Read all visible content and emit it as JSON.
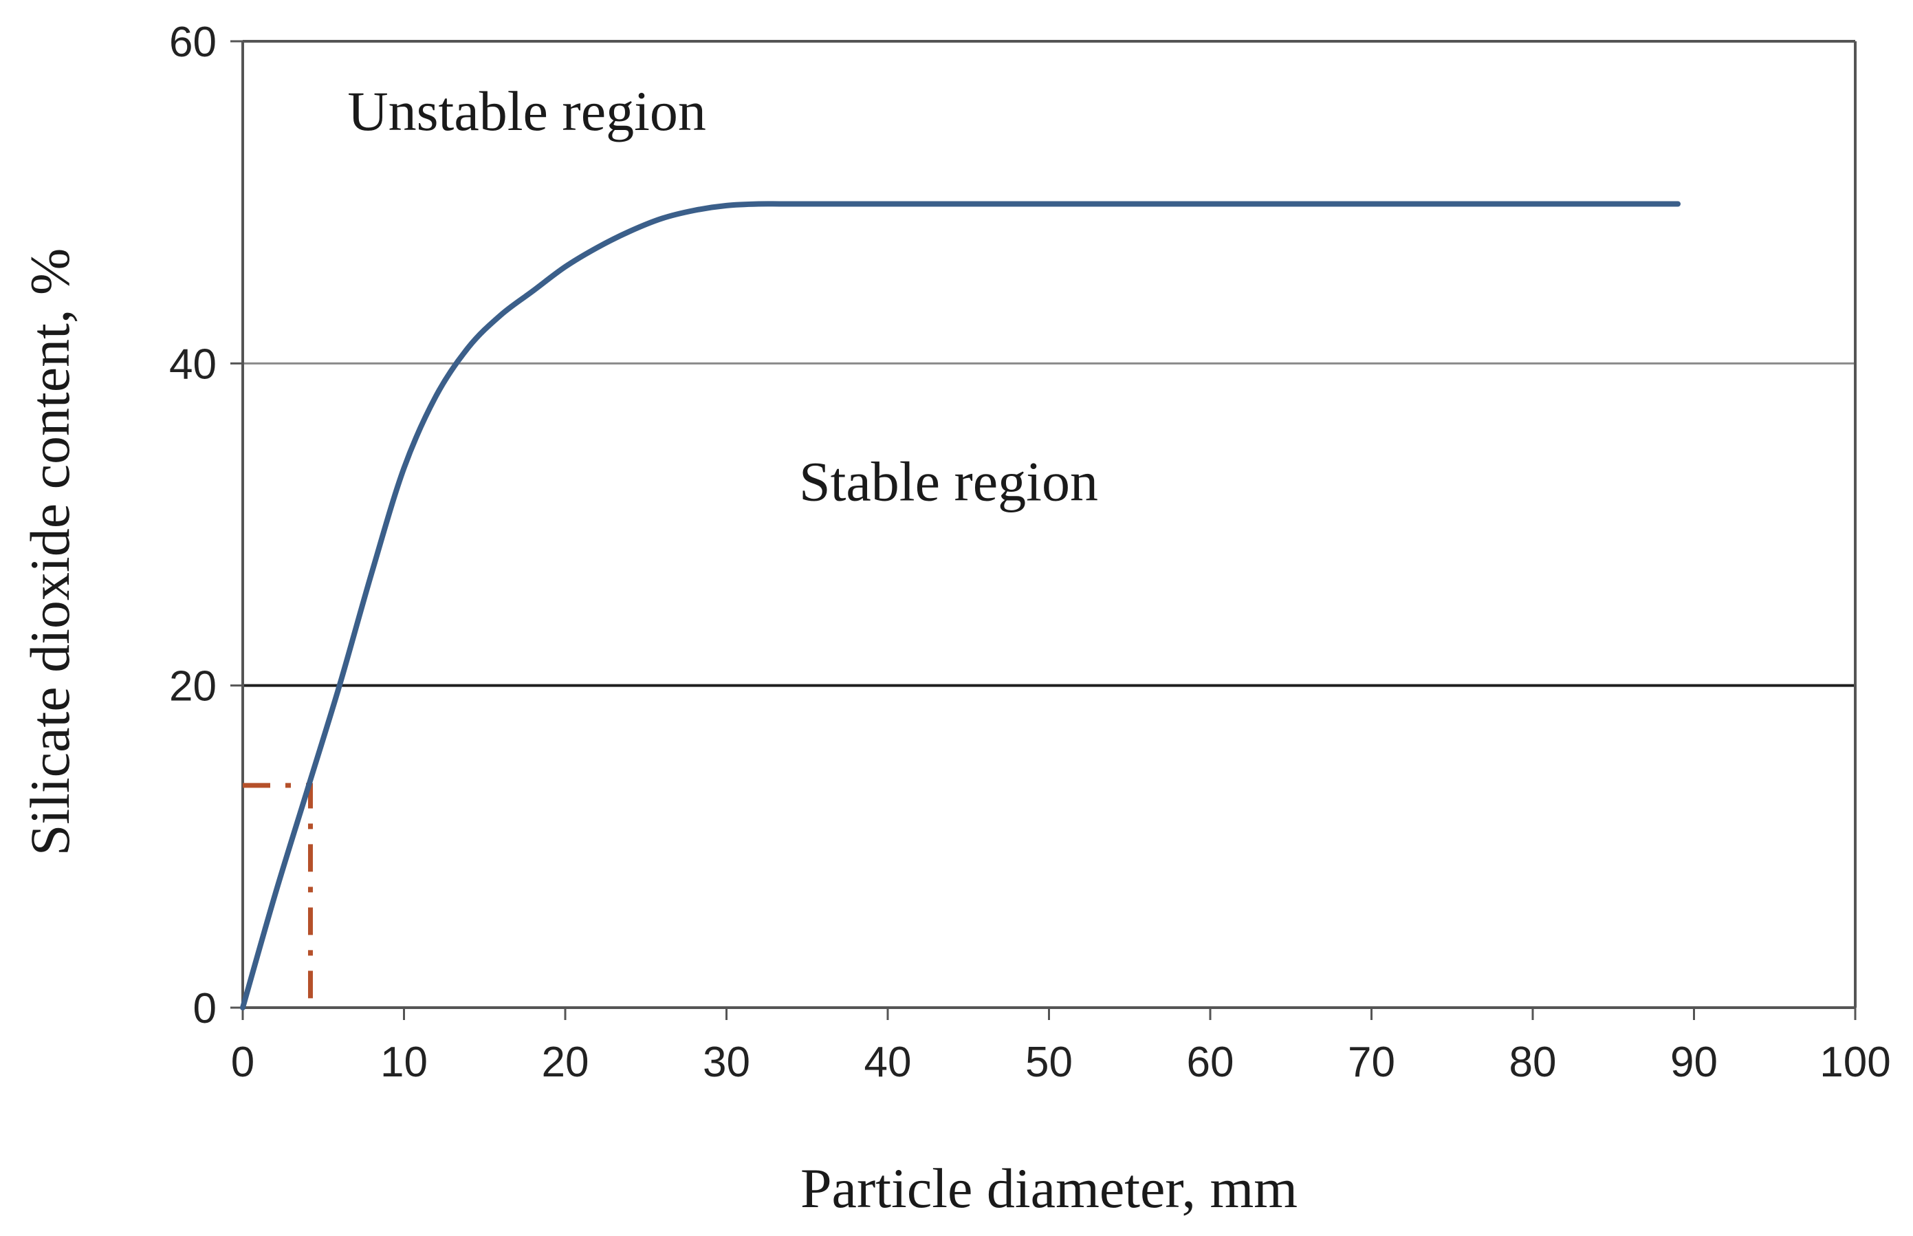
{
  "chart_data": {
    "type": "line",
    "title": "",
    "xlabel": "Particle diameter, mm",
    "ylabel": "Silicate dioxide content, %",
    "xlim": [
      0,
      100
    ],
    "ylim": [
      0,
      60
    ],
    "x_ticks": [
      "0",
      "10",
      "20",
      "30",
      "40",
      "50",
      "60",
      "70",
      "80",
      "90",
      "100"
    ],
    "y_ticks": [
      "0",
      "20",
      "40",
      "60"
    ],
    "grid": {
      "horizontal": true,
      "vertical": false
    },
    "series": [
      {
        "color": "#3b5f8a",
        "x": [
          0,
          2,
          4,
          6,
          8,
          10,
          12,
          14,
          16,
          18,
          20,
          22,
          24,
          26,
          28,
          30,
          32,
          34,
          40,
          50,
          60,
          70,
          80,
          89
        ],
        "y": [
          0,
          7,
          13.5,
          20,
          27,
          33.5,
          38,
          41,
          43,
          44.5,
          46,
          47.2,
          48.2,
          49,
          49.5,
          49.8,
          49.9,
          49.9,
          49.9,
          49.9,
          49.9,
          49.9,
          49.9,
          49.9
        ]
      }
    ],
    "reference_lines": [
      {
        "style": "dash-dot",
        "color": "#b5502a",
        "x": [
          0,
          4.2,
          4.2
        ],
        "y": [
          13.8,
          13.8,
          0
        ]
      }
    ],
    "annotations": [
      {
        "text": "Unstable region",
        "x": 6.5,
        "y": 54.5
      },
      {
        "text": "Stable region",
        "x": 34.5,
        "y": 31.5
      }
    ]
  }
}
